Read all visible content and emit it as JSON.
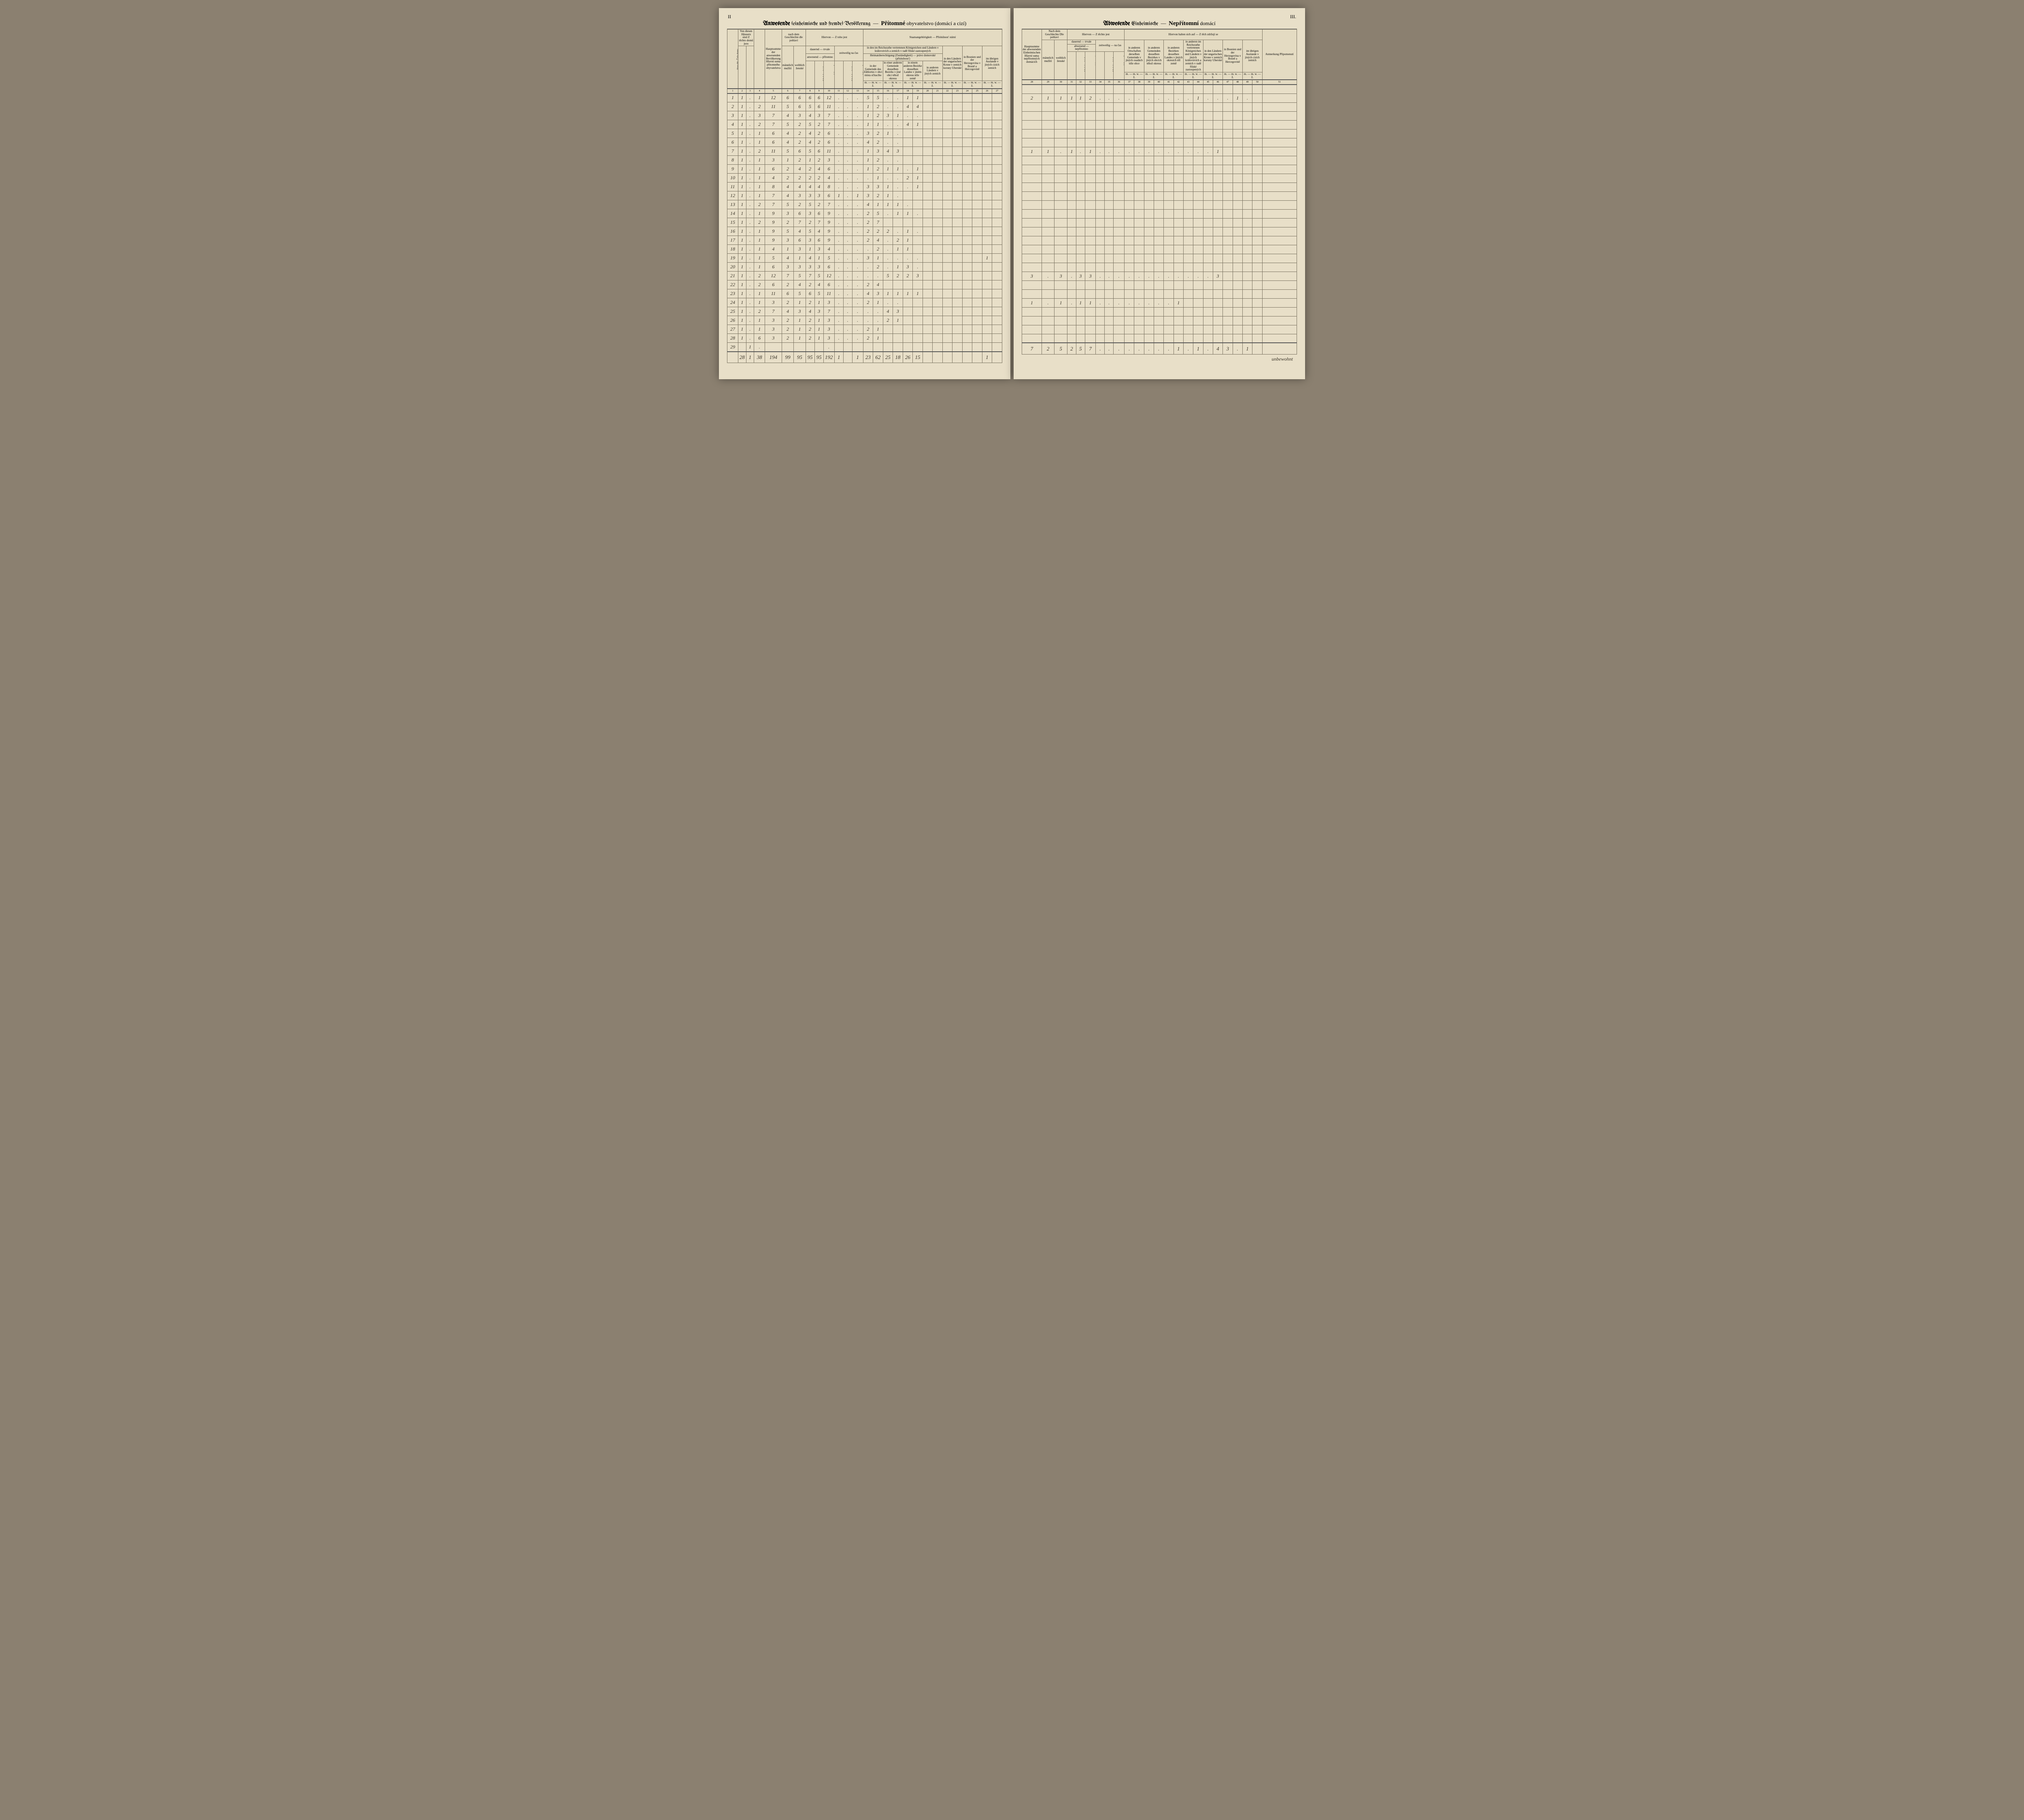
{
  "page_numbers": {
    "left": "II",
    "right": "III."
  },
  "titles": {
    "left": {
      "de_b": "Anwesende",
      "de_rest": "(einheimische und fremde) Bevölkerung",
      "dash": "—",
      "cz_b": "Přítomné",
      "cz_rest": "obyvatelstvo (domácí a cizí)"
    },
    "right": {
      "de_b": "Abwesende",
      "de_rest": "Einheimische",
      "dash": "—",
      "cz_b": "Nepřítomní",
      "cz_rest": "domácí"
    }
  },
  "left_headers": {
    "haus_nr": "Haus-Nr.\nČíslo domu",
    "bewohnt": "Von diesen Häusern sind\nZ těchto domů jsou",
    "bewohnt_sub": [
      "bewohnt — obydlený",
      "unbewohnt — neobydlený"
    ],
    "wohnparteien": "Zahl der Wohnparteien\nPočet stran bytujících",
    "hauptsumme": "Hauptsumme der anwesenden Bevölkerung\nHlavní suma přítomného obyvatelstva",
    "geschlecht": "nach dem Geschlechte\ndle pohlaví",
    "geschlecht_sub": [
      "männlich\nmužští",
      "weiblich\nženské"
    ],
    "hiervon": "Hiervon — Z toho jest",
    "dauernd": "dauernd — trvale",
    "anwesend": "anwesend — přítomno",
    "zeitweilig": "zeitweilig\nna čas",
    "dauernd_cols": [
      "männlich mužských",
      "weiblich ženských",
      "zusammen dohromady",
      "männlich mužských",
      "weiblich ženských",
      "zusammen dohromady"
    ],
    "staats": "Staatsangehörigkeit — Příslušnosť státní",
    "reichsrathe": "in den im Reichsrathe vertretenen Königreichen und Ländern\nv královstvích a zemích v radě říšské zastoupených",
    "heimat": "Heimatsberechtigung (Zuständigkeit) — právo domovské (příslušnosť)",
    "heimat_cols": [
      "in der Gemeinde des Zählortes\nv obci místa sčítacího",
      "in einer anderen Gemeinde desselben Bezirks\nv jiné obci téhož okresu",
      "in einem anderen Bezirke desselben Landes\nv jiném okresu téže země",
      "in anderen Ländern\nv jiných zemích"
    ],
    "ungar": "in den Ländern der ungarischen Krone\nv zemích koruny Uherské",
    "bosnien": "in Bosnien und der Herzegovina\nv Bosně a Hercegovině",
    "ausland": "im übrigen Auslande\nv jiných cizích zemích",
    "mw": "m. — m.   w. — ž."
  },
  "right_headers": {
    "hauptsumme": "Hauptsumme der abwesenden Einheimischen\nHlavní suma nepřítomných domácích",
    "geschlecht": "Nach dem Geschlechte\nDle pohlaví",
    "geschlecht_sub": [
      "männlich\nmužští",
      "weiblich\nženské"
    ],
    "hiervon": "Hiervon — Z těchto jest",
    "dauernd": "dauernd — trvale",
    "abwesend": "abwesend — nepřítomno",
    "zeitweilig": "zeitweilig — na čas",
    "halten": "Hiervon halten sich auf — Z těch zdržují se",
    "halten_cols": [
      "in anderen Ortschaften derselben Gemeinde\nv jiných osadách téže obce",
      "in anderen Gemeinden desselben Bezirkes\nv jiných obcích téhož okresu",
      "in anderen Bezirken desselben Landes\nv jiných okresích též země",
      "in anderen im Reichsrathe vertretenen Königreichen und Ländern\nv jiných královstvích a zemích v radě říšské zastoupených",
      "in den Ländern der ungarischen Krone\nv zemích koruny Uherské",
      "in Bosnien und der Herzegovina\nv Bosně a Hercegovině",
      "im übrigen Auslande\nv jiných cizích zemích"
    ],
    "anmerkung": "Anmerkung\nPřipomenutí"
  },
  "left_colnums": [
    "1",
    "2",
    "3",
    "4",
    "5",
    "6",
    "7",
    "8",
    "9",
    "10",
    "11",
    "12",
    "13",
    "14",
    "15",
    "16",
    "17",
    "18",
    "19",
    "20",
    "21",
    "22",
    "23",
    "24",
    "25",
    "26",
    "27"
  ],
  "right_colnums": [
    "28",
    "29",
    "30",
    "31",
    "32",
    "33",
    "34",
    "35",
    "36",
    "37",
    "38",
    "39",
    "40",
    "41",
    "42",
    "43",
    "44",
    "45",
    "46",
    "47",
    "48",
    "49",
    "50",
    "51"
  ],
  "left_rows": [
    [
      "1",
      "1",
      ".",
      "1",
      "12",
      "6",
      "6",
      "6",
      "6",
      "12",
      ".",
      ".",
      ".",
      "5",
      "5",
      ".",
      ".",
      "1",
      "1",
      "",
      "",
      "",
      "",
      "",
      "",
      "",
      ""
    ],
    [
      "2",
      "1",
      ".",
      "2",
      "11",
      "5",
      "6",
      "5",
      "6",
      "11",
      ".",
      ".",
      ".",
      "1",
      "2",
      ".",
      ".",
      "4",
      "4",
      "",
      "",
      "",
      "",
      "",
      "",
      "",
      ""
    ],
    [
      "3",
      "1",
      ".",
      "3",
      "7",
      "4",
      "3",
      "4",
      "3",
      "7",
      ".",
      ".",
      ".",
      "1",
      "2",
      "3",
      "1",
      ".",
      ".",
      "",
      "",
      "",
      "",
      "",
      "",
      "",
      ""
    ],
    [
      "4",
      "1",
      ".",
      "2",
      "7",
      "5",
      "2",
      "5",
      "2",
      "7",
      ".",
      ".",
      ".",
      "1",
      "1",
      ".",
      ".",
      "4",
      "1",
      "",
      "",
      "",
      "",
      "",
      "",
      "",
      ""
    ],
    [
      "5",
      "1",
      ".",
      "1",
      "6",
      "4",
      "2",
      "4",
      "2",
      "6",
      ".",
      ".",
      ".",
      "3",
      "2",
      "1",
      ".",
      "",
      "",
      "",
      "",
      "",
      "",
      "",
      "",
      "",
      ""
    ],
    [
      "6",
      "1",
      ".",
      "1",
      "6",
      "4",
      "2",
      "4",
      "2",
      "6",
      ".",
      ".",
      ".",
      "4",
      "2",
      ".",
      ".",
      "",
      "",
      "",
      "",
      "",
      "",
      "",
      "",
      "",
      ""
    ],
    [
      "7",
      "1",
      ".",
      "2",
      "11",
      "5",
      "6",
      "5",
      "6",
      "11",
      ".",
      ".",
      ".",
      "1",
      "3",
      "4",
      "3",
      "",
      "",
      "",
      "",
      "",
      "",
      "",
      "",
      "",
      ""
    ],
    [
      "8",
      "1",
      ".",
      "1",
      "3",
      "1",
      "2",
      "1",
      "2",
      "3",
      ".",
      ".",
      ".",
      "1",
      "2",
      ".",
      ".",
      "",
      "",
      "",
      "",
      "",
      "",
      "",
      "",
      "",
      ""
    ],
    [
      "9",
      "1",
      ".",
      "1",
      "6",
      "2",
      "4",
      "2",
      "4",
      "6",
      ".",
      ".",
      ".",
      "1",
      "2",
      "1",
      "1",
      ".",
      "1",
      "",
      "",
      "",
      "",
      "",
      "",
      "",
      ""
    ],
    [
      "10",
      "1",
      ".",
      "1",
      "4",
      "2",
      "2",
      "2",
      "2",
      "4",
      ".",
      ".",
      ".",
      ".",
      "1",
      ".",
      ".",
      "2",
      "1",
      "",
      "",
      "",
      "",
      "",
      "",
      "",
      ""
    ],
    [
      "11",
      "1",
      ".",
      "1",
      "8",
      "4",
      "4",
      "4",
      "4",
      "8",
      ".",
      ".",
      ".",
      "3",
      "3",
      "1",
      ".",
      ".",
      "1",
      "",
      "",
      "",
      "",
      "",
      "",
      "",
      ""
    ],
    [
      "12",
      "1",
      ".",
      "1",
      "7",
      "4",
      "3",
      "3",
      "3",
      "6",
      "1",
      ".",
      "1",
      "3",
      "2",
      "1",
      ".",
      "",
      "",
      "",
      "",
      "",
      "",
      "",
      "",
      "",
      ""
    ],
    [
      "13",
      "1",
      ".",
      "2",
      "7",
      "5",
      "2",
      "5",
      "2",
      "7",
      ".",
      ".",
      ".",
      "4",
      "1",
      "1",
      "1",
      ".",
      "",
      "",
      "",
      "",
      "",
      "",
      "",
      "",
      ""
    ],
    [
      "14",
      "1",
      ".",
      "1",
      "9",
      "3",
      "6",
      "3",
      "6",
      "9",
      ".",
      ".",
      ".",
      "2",
      "5",
      ".",
      "1",
      "1",
      ".",
      "",
      "",
      "",
      "",
      "",
      "",
      "",
      ""
    ],
    [
      "15",
      "1",
      ".",
      "2",
      "9",
      "2",
      "7",
      "2",
      "7",
      "9",
      ".",
      ".",
      ".",
      "2",
      "7",
      "",
      "",
      "",
      "",
      "",
      "",
      "",
      "",
      "",
      "",
      "",
      ""
    ],
    [
      "16",
      "1",
      ".",
      "1",
      "9",
      "5",
      "4",
      "5",
      "4",
      "9",
      ".",
      ".",
      ".",
      "2",
      "2",
      "2",
      ".",
      "1",
      ".",
      "",
      "",
      "",
      "",
      "",
      "",
      "",
      ""
    ],
    [
      "17",
      "1",
      ".",
      "1",
      "9",
      "3",
      "6",
      "3",
      "6",
      "9",
      ".",
      ".",
      ".",
      "2",
      "4",
      ".",
      "2",
      "1",
      "",
      "",
      "",
      "",
      "",
      "",
      "",
      "",
      ""
    ],
    [
      "18",
      "1",
      ".",
      "1",
      "4",
      "1",
      "3",
      "1",
      "3",
      "4",
      ".",
      ".",
      ".",
      ".",
      "2",
      ".",
      "1",
      "1",
      "",
      "",
      "",
      "",
      "",
      "",
      "",
      "",
      ""
    ],
    [
      "19",
      "1",
      ".",
      "1",
      "5",
      "4",
      "1",
      "4",
      "1",
      "5",
      ".",
      ".",
      ".",
      "3",
      "1",
      ".",
      ".",
      ".",
      ".",
      "",
      "",
      "",
      "",
      "",
      "",
      "1",
      ""
    ],
    [
      "20",
      "1",
      ".",
      "1",
      "6",
      "3",
      "3",
      "3",
      "3",
      "6",
      ".",
      ".",
      ".",
      ".",
      "2",
      ".",
      "1",
      "3",
      ".",
      "",
      "",
      "",
      "",
      "",
      "",
      "",
      ""
    ],
    [
      "21",
      "1",
      ".",
      "2",
      "12",
      "7",
      "5",
      "7",
      "5",
      "12",
      ".",
      ".",
      ".",
      ".",
      ".",
      "5",
      "2",
      "2",
      "3",
      "",
      "",
      "",
      "",
      "",
      "",
      "",
      ""
    ],
    [
      "22",
      "1",
      ".",
      "2",
      "6",
      "2",
      "4",
      "2",
      "4",
      "6",
      ".",
      ".",
      ".",
      "2",
      "4",
      "",
      "",
      "",
      "",
      "",
      "",
      "",
      "",
      "",
      "",
      "",
      ""
    ],
    [
      "23",
      "1",
      ".",
      "1",
      "11",
      "6",
      "5",
      "6",
      "5",
      "11",
      ".",
      ".",
      ".",
      "4",
      "3",
      "1",
      "1",
      "1",
      "1",
      "",
      "",
      "",
      "",
      "",
      "",
      "",
      ""
    ],
    [
      "24",
      "1",
      ".",
      "1",
      "3",
      "2",
      "1",
      "2",
      "1",
      "3",
      ".",
      ".",
      ".",
      "2",
      "1",
      ".",
      ".",
      "",
      "",
      "",
      "",
      "",
      "",
      "",
      "",
      "",
      ""
    ],
    [
      "25",
      "1",
      ".",
      "2",
      "7",
      "4",
      "3",
      "4",
      "3",
      "7",
      ".",
      ".",
      ".",
      ".",
      ".",
      "4",
      "3",
      "",
      "",
      "",
      "",
      "",
      "",
      "",
      "",
      "",
      ""
    ],
    [
      "26",
      "1",
      ".",
      "1",
      "3",
      "2",
      "1",
      "2",
      "1",
      "3",
      ".",
      ".",
      ".",
      ".",
      ".",
      "2",
      "1",
      "",
      "",
      "",
      "",
      "",
      "",
      "",
      "",
      "",
      ""
    ],
    [
      "27",
      "1",
      ".",
      "1",
      "3",
      "2",
      "1",
      "2",
      "1",
      "3",
      ".",
      ".",
      ".",
      "2",
      "1",
      "",
      "",
      "",
      "",
      "",
      "",
      "",
      "",
      "",
      "",
      "",
      ""
    ],
    [
      "28",
      "1",
      ".",
      "6",
      "3",
      "2",
      "1",
      "2",
      "1",
      "3",
      ".",
      ".",
      ".",
      "2",
      "1",
      "",
      "",
      "",
      "",
      "",
      "",
      "",
      "",
      "",
      "",
      "",
      ""
    ],
    [
      "29",
      "",
      "1",
      ".",
      "",
      "",
      "",
      "",
      "",
      ".",
      "",
      "",
      "",
      "",
      "",
      "",
      "",
      "",
      "",
      "",
      "",
      "",
      "",
      "",
      "",
      "",
      ""
    ]
  ],
  "left_total": [
    "",
    "28",
    "1",
    "38",
    "194",
    "99",
    "95",
    "95",
    "95",
    "192",
    "1",
    "",
    "1",
    "23",
    "62",
    "25",
    "18",
    "26",
    "15",
    "",
    "",
    "",
    "",
    "",
    "",
    "1",
    ""
  ],
  "right_rows": [
    [],
    [
      "2",
      "1",
      "1",
      "1",
      "1",
      "2",
      ".",
      ".",
      ".",
      ".",
      ".",
      ".",
      ".",
      ".",
      ".",
      ".",
      "1",
      ".",
      ".",
      ".",
      "1",
      ".",
      "",
      ""
    ],
    [],
    [],
    [],
    [],
    [],
    [
      "1",
      "1",
      ".",
      "1",
      ".",
      "1",
      ".",
      ".",
      ".",
      ".",
      ".",
      ".",
      ".",
      ".",
      ".",
      ".",
      ".",
      ".",
      "1",
      "",
      "",
      "",
      "",
      ""
    ],
    [],
    [],
    [],
    [],
    [],
    [],
    [],
    [],
    [],
    [],
    [],
    [],
    [],
    [
      "3",
      ".",
      "3",
      ".",
      "3",
      "3",
      ".",
      ".",
      ".",
      ".",
      ".",
      ".",
      ".",
      ".",
      ".",
      ".",
      ".",
      ".",
      "3",
      "",
      "",
      "",
      "",
      ""
    ],
    [],
    [],
    [
      "1",
      ".",
      "1",
      ".",
      "1",
      "1",
      ".",
      ".",
      ".",
      ".",
      ".",
      ".",
      ".",
      ".",
      "1",
      "",
      "",
      "",
      "",
      "",
      "",
      "",
      "",
      ""
    ],
    [],
    [],
    [],
    []
  ],
  "right_total": [
    "7",
    "2",
    "5",
    "2",
    "5",
    "7",
    ".",
    ".",
    ".",
    ".",
    ".",
    ".",
    ".",
    ".",
    "1",
    ".",
    "1",
    ".",
    "4",
    "3",
    ".",
    "1",
    "",
    ""
  ],
  "right_annotation": "unbewohnt"
}
